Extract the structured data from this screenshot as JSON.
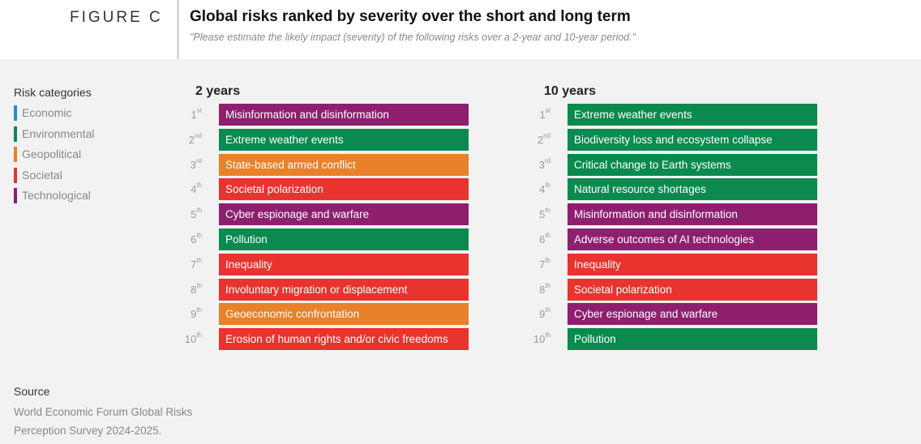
{
  "header": {
    "figure_label": "FIGURE C",
    "title": "Global risks ranked by severity over the short and long term",
    "subtitle": "\"Please estimate the likely impact (severity) of the following risks over a 2-year and 10-year period.\""
  },
  "legend": {
    "title": "Risk categories",
    "items": [
      {
        "key": "economic",
        "label": "Economic",
        "color": "#2a8bc9"
      },
      {
        "key": "environmental",
        "label": "Environmental",
        "color": "#0a8a4f"
      },
      {
        "key": "geopolitical",
        "label": "Geopolitical",
        "color": "#e8812a"
      },
      {
        "key": "societal",
        "label": "Societal",
        "color": "#e8332e"
      },
      {
        "key": "technological",
        "label": "Technological",
        "color": "#8e1f6f"
      }
    ]
  },
  "chart_data": {
    "type": "table",
    "columns": [
      {
        "title": "2 years",
        "ranks": [
          {
            "n": "1",
            "suffix": "st",
            "label": "Misinformation and disinformation",
            "category": "technological"
          },
          {
            "n": "2",
            "suffix": "nd",
            "label": "Extreme weather events",
            "category": "environmental"
          },
          {
            "n": "3",
            "suffix": "rd",
            "label": "State-based armed conflict",
            "category": "geopolitical"
          },
          {
            "n": "4",
            "suffix": "th",
            "label": "Societal polarization",
            "category": "societal"
          },
          {
            "n": "5",
            "suffix": "th",
            "label": "Cyber espionage and warfare",
            "category": "technological"
          },
          {
            "n": "6",
            "suffix": "th",
            "label": "Pollution",
            "category": "environmental"
          },
          {
            "n": "7",
            "suffix": "th",
            "label": "Inequality",
            "category": "societal"
          },
          {
            "n": "8",
            "suffix": "th",
            "label": "Involuntary migration or displacement",
            "category": "societal"
          },
          {
            "n": "9",
            "suffix": "th",
            "label": "Geoeconomic confrontation",
            "category": "geopolitical"
          },
          {
            "n": "10",
            "suffix": "th",
            "label": "Erosion of human rights and/or civic freedoms",
            "category": "societal"
          }
        ]
      },
      {
        "title": "10 years",
        "ranks": [
          {
            "n": "1",
            "suffix": "st",
            "label": "Extreme weather events",
            "category": "environmental"
          },
          {
            "n": "2",
            "suffix": "nd",
            "label": "Biodiversity loss and ecosystem collapse",
            "category": "environmental"
          },
          {
            "n": "3",
            "suffix": "rd",
            "label": "Critical change to Earth systems",
            "category": "environmental"
          },
          {
            "n": "4",
            "suffix": "th",
            "label": "Natural resource shortages",
            "category": "environmental"
          },
          {
            "n": "5",
            "suffix": "th",
            "label": "Misinformation and disinformation",
            "category": "technological"
          },
          {
            "n": "6",
            "suffix": "th",
            "label": "Adverse outcomes of AI technologies",
            "category": "technological"
          },
          {
            "n": "7",
            "suffix": "th",
            "label": "Inequality",
            "category": "societal"
          },
          {
            "n": "8",
            "suffix": "th",
            "label": "Societal polarization",
            "category": "societal"
          },
          {
            "n": "9",
            "suffix": "th",
            "label": "Cyber espionage and warfare",
            "category": "technological"
          },
          {
            "n": "10",
            "suffix": "th",
            "label": "Pollution",
            "category": "environmental"
          }
        ]
      }
    ]
  },
  "source": {
    "title": "Source",
    "text": "World Economic Forum Global Risks Perception Survey 2024-2025."
  }
}
